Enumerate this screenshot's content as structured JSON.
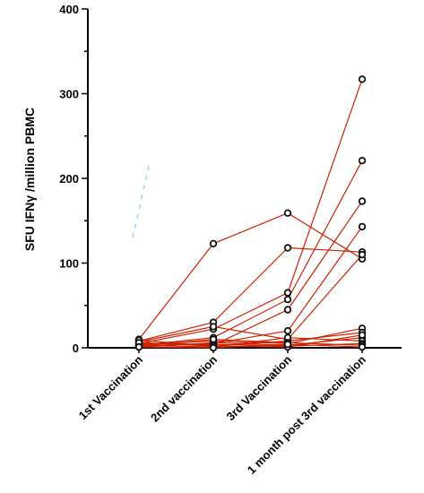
{
  "chart_data": {
    "type": "line",
    "ylabel": "SFU IFNγ /million PBMC",
    "xlabel": "",
    "ylim": [
      0,
      400
    ],
    "yticks": [
      0,
      100,
      200,
      300,
      400
    ],
    "categories": [
      "1st Vaccination",
      "2nd vaccination",
      "3rd Vaccination",
      "1 month post 3rd vaccination"
    ],
    "line_color": "#cc2200",
    "marker": "open-circle",
    "grid": false,
    "series": [
      {
        "values": [
          10,
          123,
          159,
          105
        ]
      },
      {
        "values": [
          8,
          30,
          118,
          113
        ]
      },
      {
        "values": [
          5,
          22,
          65,
          317
        ]
      },
      {
        "values": [
          3,
          12,
          57,
          221
        ]
      },
      {
        "values": [
          6,
          3,
          45,
          173
        ]
      },
      {
        "values": [
          2,
          5,
          20,
          143
        ]
      },
      {
        "values": [
          7,
          25,
          10,
          110
        ]
      },
      {
        "values": [
          4,
          8,
          5,
          23
        ]
      },
      {
        "values": [
          9,
          2,
          8,
          18
        ]
      },
      {
        "values": [
          1,
          6,
          3,
          12
        ]
      },
      {
        "values": [
          3,
          1,
          12,
          8
        ]
      },
      {
        "values": [
          5,
          4,
          2,
          5
        ]
      },
      {
        "values": [
          2,
          10,
          6,
          3
        ]
      },
      {
        "values": [
          6,
          2,
          1,
          15
        ]
      },
      {
        "values": [
          1,
          0,
          4,
          1
        ]
      }
    ]
  }
}
